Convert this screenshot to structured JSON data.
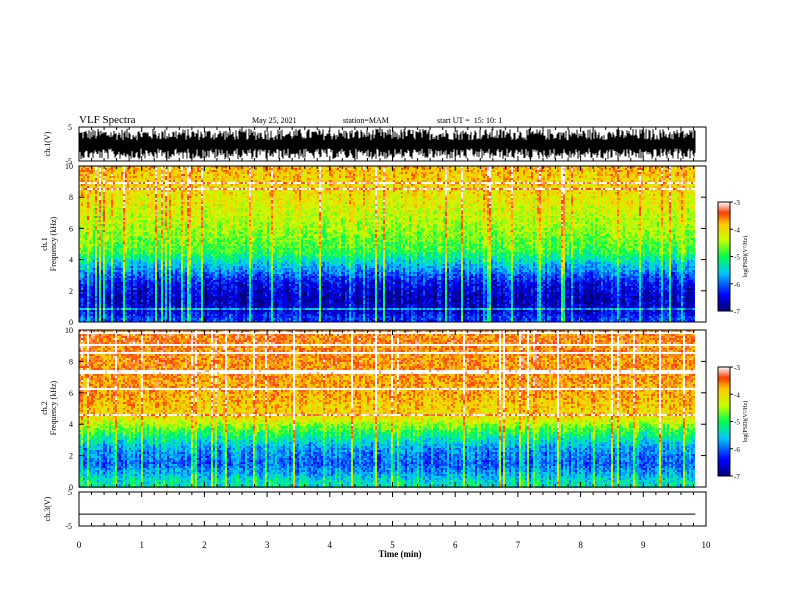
{
  "header": {
    "title": "VLF Spectra",
    "date": "May 25, 2021",
    "station": "station=MAM",
    "start": "start UT =  15: 10: 1"
  },
  "chart_data": [
    {
      "type": "line",
      "ylabel": "ch.1(V)",
      "ylim": [
        -5,
        5
      ],
      "yticks": [
        5,
        -5
      ],
      "description_hidden": false,
      "signal": {
        "mean": 0,
        "range": [
          -4.5,
          4.5
        ]
      }
    },
    {
      "type": "heatmap",
      "ylabel_line1": "ch.1",
      "ylabel_line2": "Frequency (kHz)",
      "ylim": [
        0,
        10
      ],
      "yticks": [
        0,
        2,
        4,
        6,
        8,
        10
      ],
      "colorbar": {
        "label": "log(PSD)(V²/Hz)",
        "ticks": [
          -3,
          -4,
          -5,
          -6,
          -7
        ],
        "range": [
          -7,
          -3
        ]
      },
      "profile": [
        {
          "freq": 0.25,
          "level": -6.2
        },
        {
          "freq": 0.75,
          "level": -6.6
        },
        {
          "freq": 1.5,
          "level": -6.7
        },
        {
          "freq": 2.5,
          "level": -6.4
        },
        {
          "freq": 3.5,
          "level": -5.7
        },
        {
          "freq": 4.5,
          "level": -4.9
        },
        {
          "freq": 6.0,
          "level": -4.5
        },
        {
          "freq": 8.0,
          "level": -4.1
        },
        {
          "freq": 10.0,
          "level": -3.8
        }
      ]
    },
    {
      "type": "heatmap",
      "ylabel_line1": "ch.2",
      "ylabel_line2": "Frequency (kHz)",
      "ylim": [
        0,
        10
      ],
      "yticks": [
        0,
        2,
        4,
        6,
        8,
        10
      ],
      "colorbar": {
        "label": "log(PSD)(V²/Hz)",
        "ticks": [
          -3,
          -4,
          -5,
          -6,
          -7
        ],
        "range": [
          -7,
          -3
        ]
      },
      "profile": [
        {
          "freq": 0.25,
          "level": -5.3
        },
        {
          "freq": 0.75,
          "level": -5.6
        },
        {
          "freq": 1.5,
          "level": -6.0
        },
        {
          "freq": 2.5,
          "level": -5.7
        },
        {
          "freq": 3.5,
          "level": -4.9
        },
        {
          "freq": 4.5,
          "level": -4.0
        },
        {
          "freq": 6.0,
          "level": -3.7
        },
        {
          "freq": 8.0,
          "level": -3.6
        },
        {
          "freq": 10.0,
          "level": -3.5
        }
      ]
    },
    {
      "type": "line",
      "ylabel": "ch.3(V)",
      "ylim": [
        -5,
        5
      ],
      "yticks": [
        5,
        -5
      ],
      "signal": {
        "mean": -1.5,
        "range": [
          -1.5,
          -1.5
        ]
      }
    }
  ],
  "xaxis": {
    "label": "Time (min)",
    "ticks": [
      0,
      1,
      2,
      3,
      4,
      5,
      6,
      7,
      8,
      9,
      10
    ],
    "xlim": [
      0,
      10
    ],
    "data_end": 9.83
  }
}
